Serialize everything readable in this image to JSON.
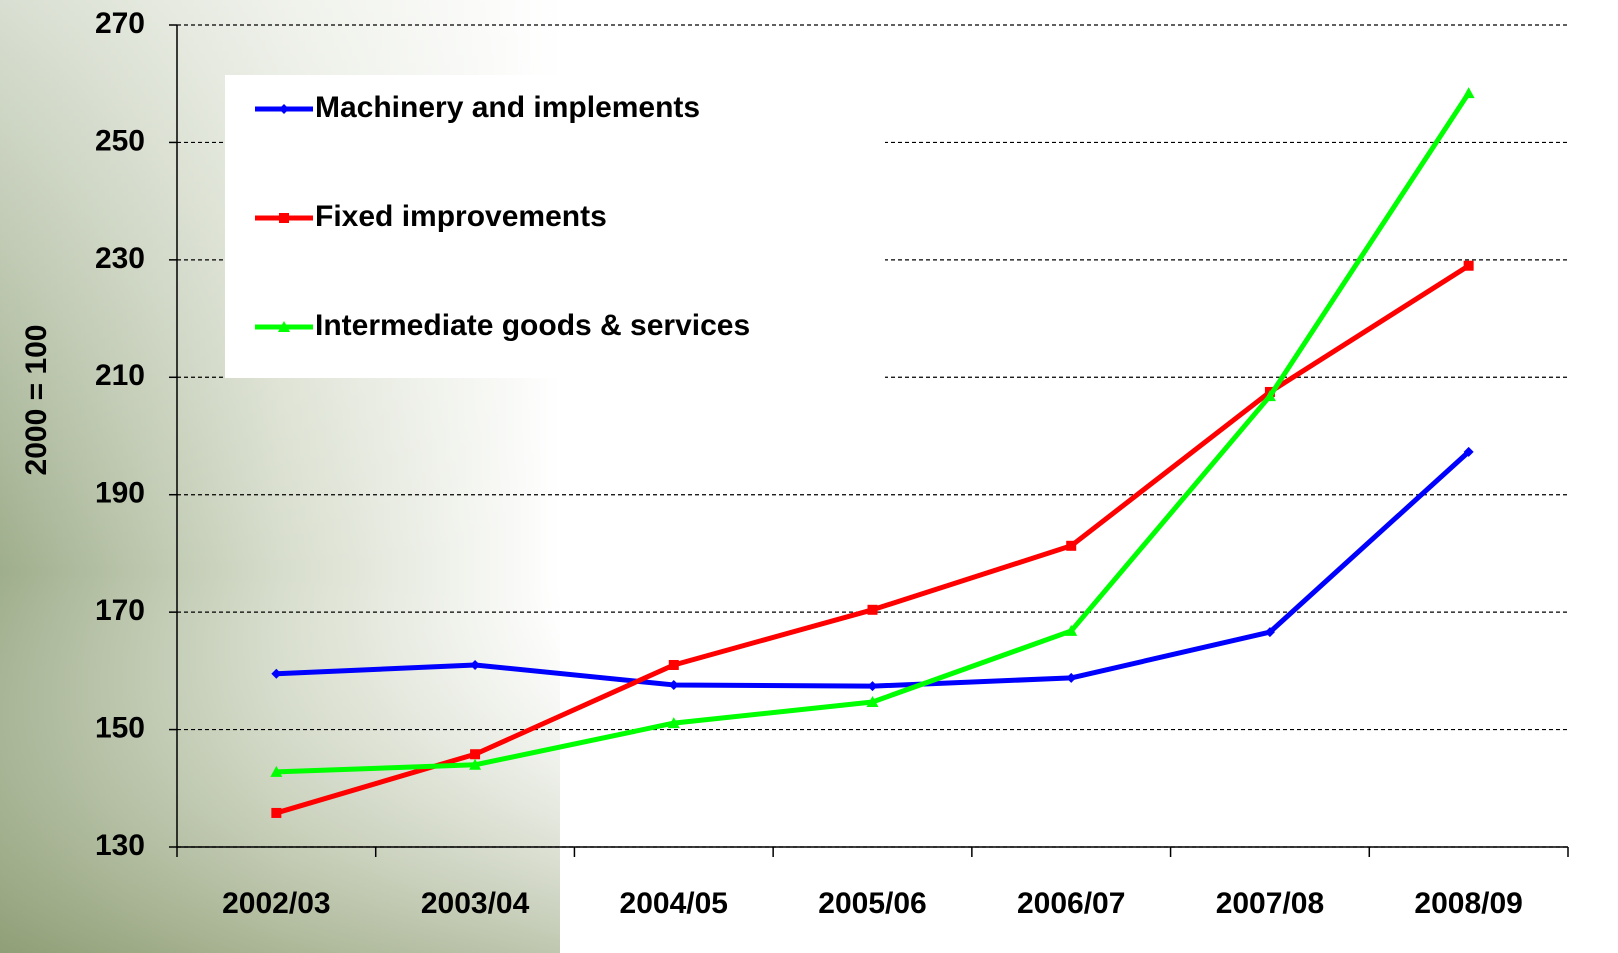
{
  "chart_data": {
    "type": "line",
    "y_label": "2000 = 100",
    "categories": [
      "2002/03",
      "2003/04",
      "2004/05",
      "2005/06",
      "2006/07",
      "2007/08",
      "2008/09"
    ],
    "series": [
      {
        "name": "Machinery and implements",
        "color": "#0000ff",
        "marker": "diamond",
        "values": [
          159.5,
          161,
          157.6,
          157.4,
          158.8,
          166.6,
          197.3
        ]
      },
      {
        "name": "Fixed improvements",
        "color": "#ff0000",
        "marker": "square",
        "values": [
          135.8,
          145.8,
          161,
          170.4,
          181.3,
          207.5,
          229
        ]
      },
      {
        "name": "Intermediate goods & services",
        "color": "#00ff00",
        "marker": "triangle",
        "values": [
          142.8,
          144,
          151.1,
          154.7,
          166.8,
          206.8,
          258.4
        ]
      }
    ],
    "ylim": [
      130,
      270
    ],
    "yticks": [
      130,
      150,
      170,
      190,
      210,
      230,
      250,
      270
    ],
    "grid": true,
    "legend": "upper left"
  }
}
